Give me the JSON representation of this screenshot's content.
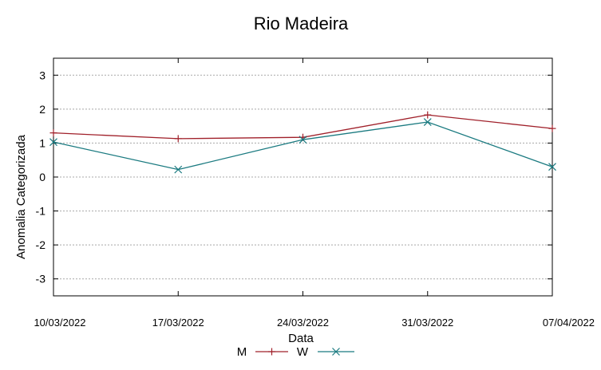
{
  "chart_data": {
    "type": "line",
    "title": "Rio Madeira",
    "xlabel": "Data",
    "ylabel": "Anomalia Categorizada",
    "categories": [
      "10/03/2022",
      "17/03/2022",
      "24/03/2022",
      "31/03/2022",
      "07/04/2022"
    ],
    "yticks": [
      "3",
      "2",
      "1",
      "0",
      "-1",
      "-2",
      "-3"
    ],
    "ylim": [
      -3.5,
      3.5
    ],
    "grid": true,
    "legend_position": "bottom",
    "series": [
      {
        "name": "M",
        "marker": "plus",
        "color": "#a0202a",
        "values": [
          1.3,
          1.13,
          1.17,
          1.83,
          1.43
        ]
      },
      {
        "name": "W",
        "marker": "cross",
        "color": "#1a7a80",
        "values": [
          1.03,
          0.22,
          1.1,
          1.62,
          0.3
        ]
      }
    ]
  }
}
